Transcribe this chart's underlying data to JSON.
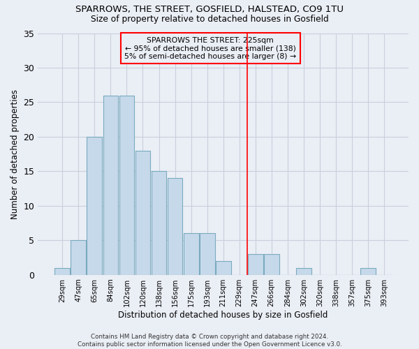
{
  "title1": "SPARROWS, THE STREET, GOSFIELD, HALSTEAD, CO9 1TU",
  "title2": "Size of property relative to detached houses in Gosfield",
  "xlabel": "Distribution of detached houses by size in Gosfield",
  "ylabel": "Number of detached properties",
  "categories": [
    "29sqm",
    "47sqm",
    "65sqm",
    "84sqm",
    "102sqm",
    "120sqm",
    "138sqm",
    "156sqm",
    "175sqm",
    "193sqm",
    "211sqm",
    "229sqm",
    "247sqm",
    "266sqm",
    "284sqm",
    "302sqm",
    "320sqm",
    "338sqm",
    "357sqm",
    "375sqm",
    "393sqm"
  ],
  "values": [
    1,
    5,
    20,
    26,
    26,
    18,
    15,
    14,
    6,
    6,
    2,
    0,
    3,
    3,
    0,
    1,
    0,
    0,
    0,
    1,
    0
  ],
  "bar_color": "#c6d9ea",
  "bar_edge_color": "#7aaabf",
  "grid_color": "#c8d0dc",
  "background_color": "#eaeef5",
  "vline_x_index": 11.5,
  "vline_color": "red",
  "annotation_text": "SPARROWS THE STREET: 225sqm\n← 95% of detached houses are smaller (138)\n5% of semi-detached houses are larger (8) →",
  "annotation_box_color": "red",
  "footer": "Contains HM Land Registry data © Crown copyright and database right 2024.\nContains public sector information licensed under the Open Government Licence v3.0.",
  "ylim": [
    0,
    35
  ],
  "yticks": [
    0,
    5,
    10,
    15,
    20,
    25,
    30,
    35
  ]
}
